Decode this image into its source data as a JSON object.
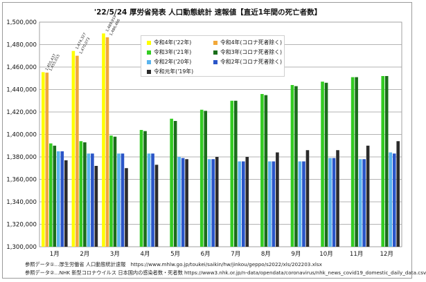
{
  "title": "'22/5/24 厚労省発表 人口動態統計 速報値【直近1年間の死亡者数】",
  "sources": [
    "参照データ①…厚生労働省 人口動態統計速報　https://www.mhlw.go.jp/toukei/saikin/hw/jinkou/geppo/s2022/xls/202203.xlsx",
    "参照データ②…NHK 新型コロナウイルス 日本国内の感染者数・死者数 https://www3.nhk.or.jp/n-data/opendata/coronavirus/nhk_news_covid19_domestic_daily_data.csv"
  ],
  "legend": [
    {
      "label": "令和4年('22年)",
      "color": "#ffff00"
    },
    {
      "label": "令和4年(コロナ死者除く)",
      "color": "#f2a83a"
    },
    {
      "label": "令和3年('21年)",
      "color": "#33cc22"
    },
    {
      "label": "令和3年(コロナ死者除く)",
      "color": "#1a6e1a"
    },
    {
      "label": "令和2年('20年)",
      "color": "#5ab4ee"
    },
    {
      "label": "令和2年(コロナ死者除く)",
      "color": "#2a55c8"
    },
    {
      "label": "令和元年('19年)",
      "color": "#2b2b2b"
    }
  ],
  "chart_data": {
    "type": "bar",
    "title": "'22/5/24 厚労省発表 人口動態統計 速報値【直近1年間の死亡者数】",
    "categories": [
      "1月",
      "2月",
      "3月",
      "4月",
      "5月",
      "6月",
      "7月",
      "8月",
      "9月",
      "10月",
      "11月",
      "12月"
    ],
    "ylim": [
      1300000,
      1500000
    ],
    "ytick_step": 20000,
    "yticks": [
      "1,300,000",
      "1,320,000",
      "1,340,000",
      "1,360,000",
      "1,380,000",
      "1,400,000",
      "1,420,000",
      "1,440,000",
      "1,460,000",
      "1,480,000",
      "1,500,000"
    ],
    "grid": true,
    "legend_position": "top-center",
    "series": [
      {
        "name": "令和4年('22年)",
        "color": "#ffff00",
        "values": [
          1455437,
          1474327,
          1489919,
          null,
          null,
          null,
          null,
          null,
          null,
          null,
          null,
          null
        ]
      },
      {
        "name": "令和4年(コロナ死者除く)",
        "color": "#f2a83a",
        "values": [
          1455015,
          1470073,
          1486466,
          null,
          null,
          null,
          null,
          null,
          null,
          null,
          null,
          null
        ]
      },
      {
        "name": "令和3年('21年)",
        "color": "#33cc22",
        "values": [
          1392000,
          1394000,
          1399000,
          1404000,
          1414000,
          1422000,
          1430000,
          1436000,
          1444000,
          1447000,
          1451000,
          1452000
        ]
      },
      {
        "name": "令和3年(コロナ死者除く)",
        "color": "#1a6e1a",
        "values": [
          1390000,
          1393000,
          1398000,
          1403000,
          1412000,
          1421000,
          1430000,
          1435000,
          1443000,
          1446000,
          1451000,
          1452000
        ]
      },
      {
        "name": "令和2年('20年)",
        "color": "#5ab4ee",
        "values": [
          1385000,
          1383000,
          1383000,
          1383000,
          1380000,
          1378000,
          1376000,
          1376000,
          1376000,
          1379000,
          1378000,
          1384000
        ]
      },
      {
        "name": "令和2年(コロナ死者除く)",
        "color": "#2a55c8",
        "values": [
          1385000,
          1383000,
          1383000,
          1383000,
          1379000,
          1378000,
          1376000,
          1376000,
          1376000,
          1379000,
          1378000,
          1383000
        ]
      },
      {
        "name": "令和元年('19年)",
        "color": "#2b2b2b",
        "values": [
          1377000,
          1372000,
          1370000,
          1373000,
          1378000,
          1380000,
          1380000,
          1384000,
          1386000,
          1386000,
          1390000,
          1394000
        ]
      }
    ],
    "data_labels": [
      {
        "category": "1月",
        "series": "令和4年('22年)",
        "text": "1,455,437"
      },
      {
        "category": "1月",
        "series": "令和4年(コロナ死者除く)",
        "text": "1,455,015"
      },
      {
        "category": "2月",
        "series": "令和4年('22年)",
        "text": "1,474,327"
      },
      {
        "category": "2月",
        "series": "令和4年(コロナ死者除く)",
        "text": "1,470,073"
      },
      {
        "category": "3月",
        "series": "令和4年('22年)",
        "text": "1,489,919"
      },
      {
        "category": "3月",
        "series": "令和4年(コロナ死者除く)",
        "text": "1,486,466"
      }
    ]
  }
}
